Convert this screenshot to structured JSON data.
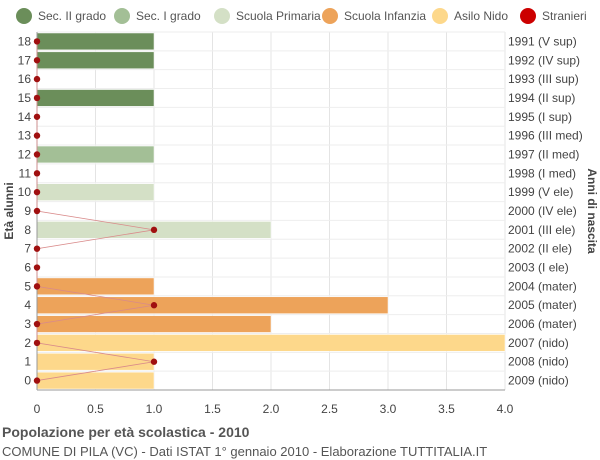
{
  "legend": [
    {
      "label": "Sec. II grado",
      "color": "#6b8e5a"
    },
    {
      "label": "Sec. I grado",
      "color": "#a3bf96"
    },
    {
      "label": "Scuola Primaria",
      "color": "#d4e0c6"
    },
    {
      "label": "Scuola Infanzia",
      "color": "#eda35a"
    },
    {
      "label": "Asilo Nido",
      "color": "#fdd88b"
    },
    {
      "label": "Stranieri",
      "color": "#cc0000"
    }
  ],
  "footer": {
    "title": "Popolazione per età scolastica - 2010",
    "subtitle": "COMUNE DI PILA (VC) - Dati ISTAT 1° gennaio 2010 - Elaborazione TUTTITALIA.IT"
  },
  "chart_data": {
    "type": "bar",
    "orientation": "horizontal",
    "ylabel": "Età alunni",
    "ylabel_right": "Anni di nascita",
    "xlim": [
      0,
      4
    ],
    "xticks": [
      "0",
      "0.5",
      "1.0",
      "1.5",
      "2.0",
      "2.5",
      "3.0",
      "3.5",
      "4.0"
    ],
    "grid": true,
    "legend_position": "top",
    "rows": [
      {
        "age": "18",
        "birth": "1991 (V sup)",
        "value": 1,
        "group": "Sec. II grado",
        "stranieri": 0
      },
      {
        "age": "17",
        "birth": "1992 (IV sup)",
        "value": 1,
        "group": "Sec. II grado",
        "stranieri": 0
      },
      {
        "age": "16",
        "birth": "1993 (III sup)",
        "value": 0,
        "group": "Sec. II grado",
        "stranieri": 0
      },
      {
        "age": "15",
        "birth": "1994 (II sup)",
        "value": 1,
        "group": "Sec. II grado",
        "stranieri": 0
      },
      {
        "age": "14",
        "birth": "1995 (I sup)",
        "value": 0,
        "group": "Sec. II grado",
        "stranieri": 0
      },
      {
        "age": "13",
        "birth": "1996 (III med)",
        "value": 0,
        "group": "Sec. I grado",
        "stranieri": 0
      },
      {
        "age": "12",
        "birth": "1997 (II med)",
        "value": 1,
        "group": "Sec. I grado",
        "stranieri": 0
      },
      {
        "age": "11",
        "birth": "1998 (I med)",
        "value": 0,
        "group": "Sec. I grado",
        "stranieri": 0
      },
      {
        "age": "10",
        "birth": "1999 (V ele)",
        "value": 1,
        "group": "Scuola Primaria",
        "stranieri": 0
      },
      {
        "age": "9",
        "birth": "2000 (IV ele)",
        "value": 0,
        "group": "Scuola Primaria",
        "stranieri": 0
      },
      {
        "age": "8",
        "birth": "2001 (III ele)",
        "value": 2,
        "group": "Scuola Primaria",
        "stranieri": 1
      },
      {
        "age": "7",
        "birth": "2002 (II ele)",
        "value": 0,
        "group": "Scuola Primaria",
        "stranieri": 0
      },
      {
        "age": "6",
        "birth": "2003 (I ele)",
        "value": 0,
        "group": "Scuola Primaria",
        "stranieri": 0
      },
      {
        "age": "5",
        "birth": "2004 (mater)",
        "value": 1,
        "group": "Scuola Infanzia",
        "stranieri": 0
      },
      {
        "age": "4",
        "birth": "2005 (mater)",
        "value": 3,
        "group": "Scuola Infanzia",
        "stranieri": 1
      },
      {
        "age": "3",
        "birth": "2006 (mater)",
        "value": 2,
        "group": "Scuola Infanzia",
        "stranieri": 0
      },
      {
        "age": "2",
        "birth": "2007 (nido)",
        "value": 4,
        "group": "Asilo Nido",
        "stranieri": 0
      },
      {
        "age": "1",
        "birth": "2008 (nido)",
        "value": 1,
        "group": "Asilo Nido",
        "stranieri": 1
      },
      {
        "age": "0",
        "birth": "2009 (nido)",
        "value": 1,
        "group": "Asilo Nido",
        "stranieri": 0
      }
    ]
  }
}
